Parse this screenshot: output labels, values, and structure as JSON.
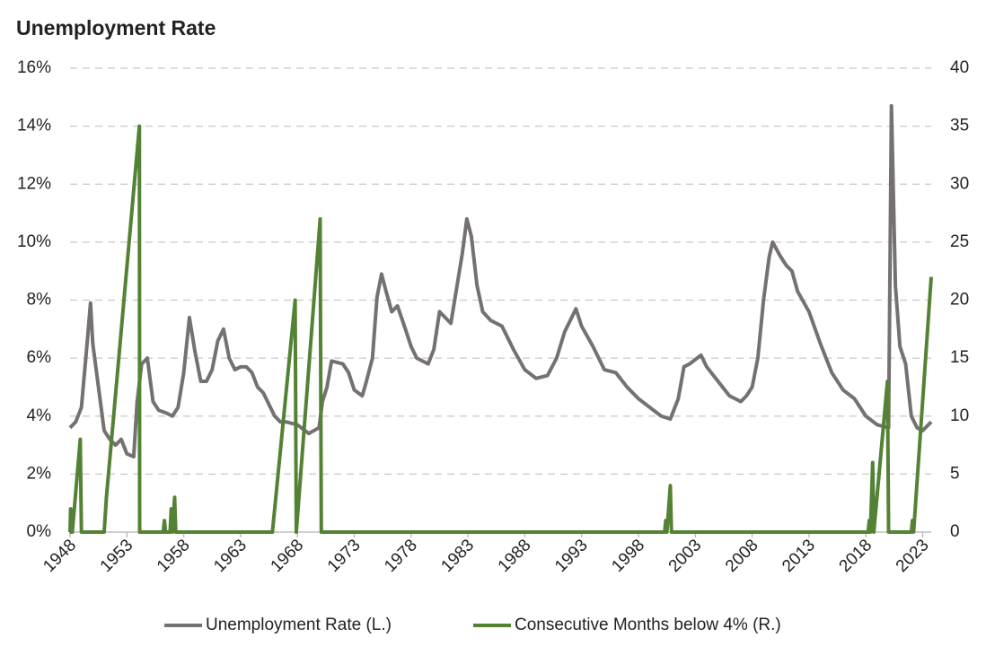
{
  "chart_data": {
    "type": "line",
    "title": "Unemployment Rate",
    "xlim": [
      1948,
      2023.75
    ],
    "xticks": [
      1948,
      1953,
      1958,
      1963,
      1968,
      1973,
      1978,
      1983,
      1988,
      1993,
      1998,
      2003,
      2008,
      2013,
      2018,
      2023
    ],
    "ylim": [
      0,
      16
    ],
    "yticks": [
      {
        "value": 0,
        "label": "0%"
      },
      {
        "value": 2,
        "label": "2%"
      },
      {
        "value": 4,
        "label": "4%"
      },
      {
        "value": 6,
        "label": "6%"
      },
      {
        "value": 8,
        "label": "8%"
      },
      {
        "value": 10,
        "label": "10%"
      },
      {
        "value": 12,
        "label": "12%"
      },
      {
        "value": 14,
        "label": "14%"
      },
      {
        "value": 16,
        "label": "16%"
      }
    ],
    "y2lim": [
      0,
      40
    ],
    "y2ticks": [
      0,
      5,
      10,
      15,
      20,
      25,
      30,
      35,
      40
    ],
    "grid": true,
    "legend": "bottom",
    "series": [
      {
        "name": "Unemployment Rate (L.)",
        "color": "#767171",
        "x": [
          1948.0,
          1948.5,
          1949.0,
          1949.5,
          1949.8,
          1950.0,
          1950.5,
          1951.0,
          1951.5,
          1952.0,
          1952.5,
          1953.0,
          1953.6,
          1953.9,
          1954.3,
          1954.8,
          1955.3,
          1955.8,
          1956.5,
          1957.0,
          1957.5,
          1958.0,
          1958.5,
          1959.0,
          1959.5,
          1960.0,
          1960.5,
          1961.0,
          1961.5,
          1962.0,
          1962.5,
          1963.0,
          1963.5,
          1964.0,
          1964.5,
          1965.0,
          1965.5,
          1966.0,
          1966.5,
          1967.0,
          1968.0,
          1969.0,
          1969.9,
          1970.2,
          1970.6,
          1971.0,
          1972.0,
          1972.5,
          1973.0,
          1973.7,
          1974.0,
          1974.6,
          1975.0,
          1975.4,
          1975.8,
          1976.3,
          1976.8,
          1977.5,
          1978.0,
          1978.5,
          1979.0,
          1979.5,
          1980.0,
          1980.5,
          1981.0,
          1981.5,
          1982.0,
          1982.5,
          1982.9,
          1983.3,
          1983.8,
          1984.3,
          1985.0,
          1986.0,
          1987.0,
          1988.0,
          1989.0,
          1990.0,
          1990.8,
          1991.5,
          1992.5,
          1993.0,
          1994.0,
          1995.0,
          1996.0,
          1997.0,
          1998.0,
          1999.0,
          2000.0,
          2000.8,
          2001.5,
          2002.0,
          2002.5,
          2003.5,
          2004.0,
          2005.0,
          2006.0,
          2007.0,
          2007.5,
          2008.0,
          2008.5,
          2009.0,
          2009.5,
          2009.8,
          2010.5,
          2011.0,
          2011.5,
          2012.0,
          2013.0,
          2014.0,
          2015.0,
          2016.0,
          2017.0,
          2018.0,
          2019.0,
          2020.0,
          2020.25,
          2020.6,
          2021.0,
          2021.5,
          2022.0,
          2022.5,
          2023.0,
          2023.75
        ],
        "values": [
          3.6,
          3.8,
          4.3,
          6.5,
          7.9,
          6.5,
          5.0,
          3.5,
          3.2,
          3.0,
          3.2,
          2.7,
          2.6,
          4.5,
          5.8,
          6.0,
          4.5,
          4.2,
          4.1,
          4.0,
          4.3,
          5.5,
          7.4,
          6.2,
          5.2,
          5.2,
          5.6,
          6.6,
          7.0,
          6.0,
          5.6,
          5.7,
          5.7,
          5.5,
          5.0,
          4.8,
          4.4,
          4.0,
          3.8,
          3.8,
          3.7,
          3.4,
          3.6,
          4.5,
          5.0,
          5.9,
          5.8,
          5.5,
          4.9,
          4.7,
          5.1,
          6.0,
          8.1,
          8.9,
          8.3,
          7.6,
          7.8,
          7.0,
          6.4,
          6.0,
          5.9,
          5.8,
          6.3,
          7.6,
          7.4,
          7.2,
          8.4,
          9.6,
          10.8,
          10.2,
          8.5,
          7.6,
          7.3,
          7.1,
          6.3,
          5.6,
          5.3,
          5.4,
          6.0,
          6.9,
          7.7,
          7.1,
          6.4,
          5.6,
          5.5,
          5.0,
          4.6,
          4.3,
          4.0,
          3.9,
          4.6,
          5.7,
          5.8,
          6.1,
          5.7,
          5.2,
          4.7,
          4.5,
          4.7,
          5.0,
          6.0,
          8.0,
          9.5,
          10.0,
          9.5,
          9.2,
          9.0,
          8.3,
          7.6,
          6.5,
          5.5,
          4.9,
          4.6,
          4.0,
          3.7,
          3.6,
          14.7,
          8.5,
          6.4,
          5.8,
          4.0,
          3.6,
          3.5,
          3.8
        ]
      },
      {
        "name": "Consecutive Months below 4% (R.)",
        "color": "#548235",
        "axis": "y2",
        "x": [
          1948.0,
          1948.05,
          1948.1,
          1948.2,
          1948.9,
          1949.0,
          1951.0,
          1951.2,
          1954.1,
          1954.12,
          1956.2,
          1956.3,
          1956.4,
          1956.8,
          1956.9,
          1957.0,
          1957.2,
          1957.3,
          1965.8,
          1967.8,
          1967.9,
          1970.0,
          1970.1,
          2000.3,
          2000.4,
          2000.5,
          2000.8,
          2000.9,
          2018.2,
          2018.3,
          2018.4,
          2018.6,
          2018.7,
          2019.9,
          2020.0,
          2022.0,
          2022.1,
          2022.2,
          2023.75
        ],
        "values": [
          0,
          2,
          0,
          0,
          8,
          0,
          0,
          3,
          35,
          0,
          0,
          1,
          0,
          0,
          2,
          0,
          3,
          0,
          0,
          20,
          0,
          27,
          0,
          0,
          1,
          0,
          4,
          0,
          0,
          1,
          0,
          6,
          0,
          13,
          0,
          0,
          1,
          0,
          22
        ]
      }
    ]
  }
}
